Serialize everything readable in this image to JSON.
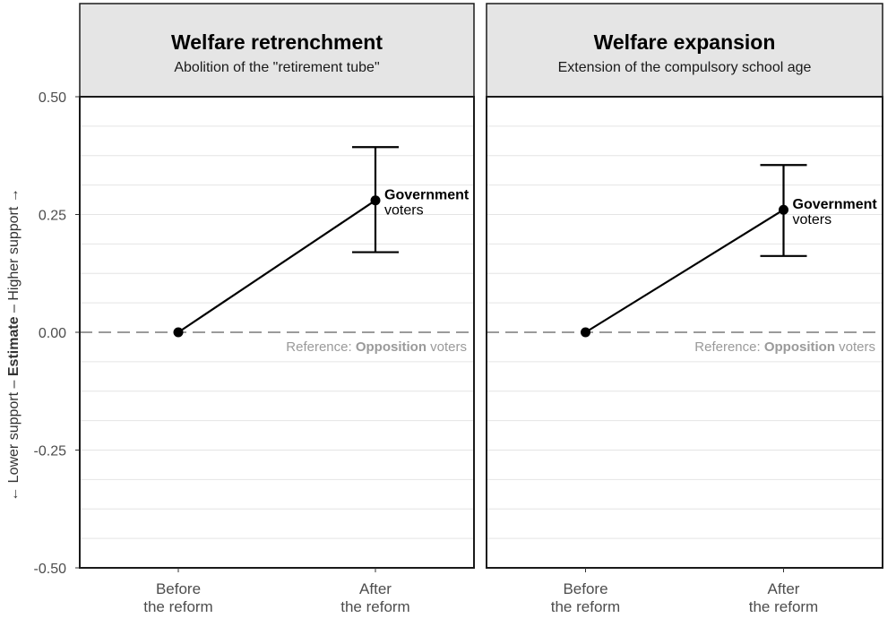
{
  "y_axis_label": {
    "lower": "← Lower support",
    "sep1": " – ",
    "main": "Estimate",
    "sep2": " – ",
    "higher": "Higher support →"
  },
  "chart_data": [
    {
      "type": "line",
      "title": "Welfare retrenchment",
      "subtitle": "Abolition of the \"retirement tube\"",
      "categories": [
        "Before\nthe reform",
        "After\nthe reform"
      ],
      "values": [
        0.0,
        0.28
      ],
      "error_low": [
        null,
        0.17
      ],
      "error_high": [
        null,
        0.393
      ],
      "point_label": {
        "bold": "Government",
        "normal": "voters"
      },
      "reference_line": {
        "y": 0.0,
        "prefix": "Reference: ",
        "bold": "Opposition",
        "suffix": " voters"
      },
      "ylim": [
        -0.5,
        0.5
      ],
      "yticks": [
        0.5,
        0.25,
        0.0,
        -0.25,
        -0.5
      ],
      "ytick_labels": [
        "0.50",
        "0.25",
        "0.00",
        "-0.25",
        "-0.50"
      ]
    },
    {
      "type": "line",
      "title": "Welfare expansion",
      "subtitle": "Extension of the compulsory school age",
      "categories": [
        "Before\nthe reform",
        "After\nthe reform"
      ],
      "values": [
        0.0,
        0.26
      ],
      "error_low": [
        null,
        0.162
      ],
      "error_high": [
        null,
        0.355
      ],
      "point_label": {
        "bold": "Government",
        "normal": "voters"
      },
      "reference_line": {
        "y": 0.0,
        "prefix": "Reference: ",
        "bold": "Opposition",
        "suffix": " voters"
      },
      "ylim": [
        -0.5,
        0.5
      ]
    }
  ],
  "colors": {
    "line": "#000000",
    "reference": "#9a9a9a",
    "reference_text": "#9a9a9a",
    "grid": "#e4e4e4",
    "strip": "#e5e5e5",
    "axis_text": "#4d4d4d"
  }
}
